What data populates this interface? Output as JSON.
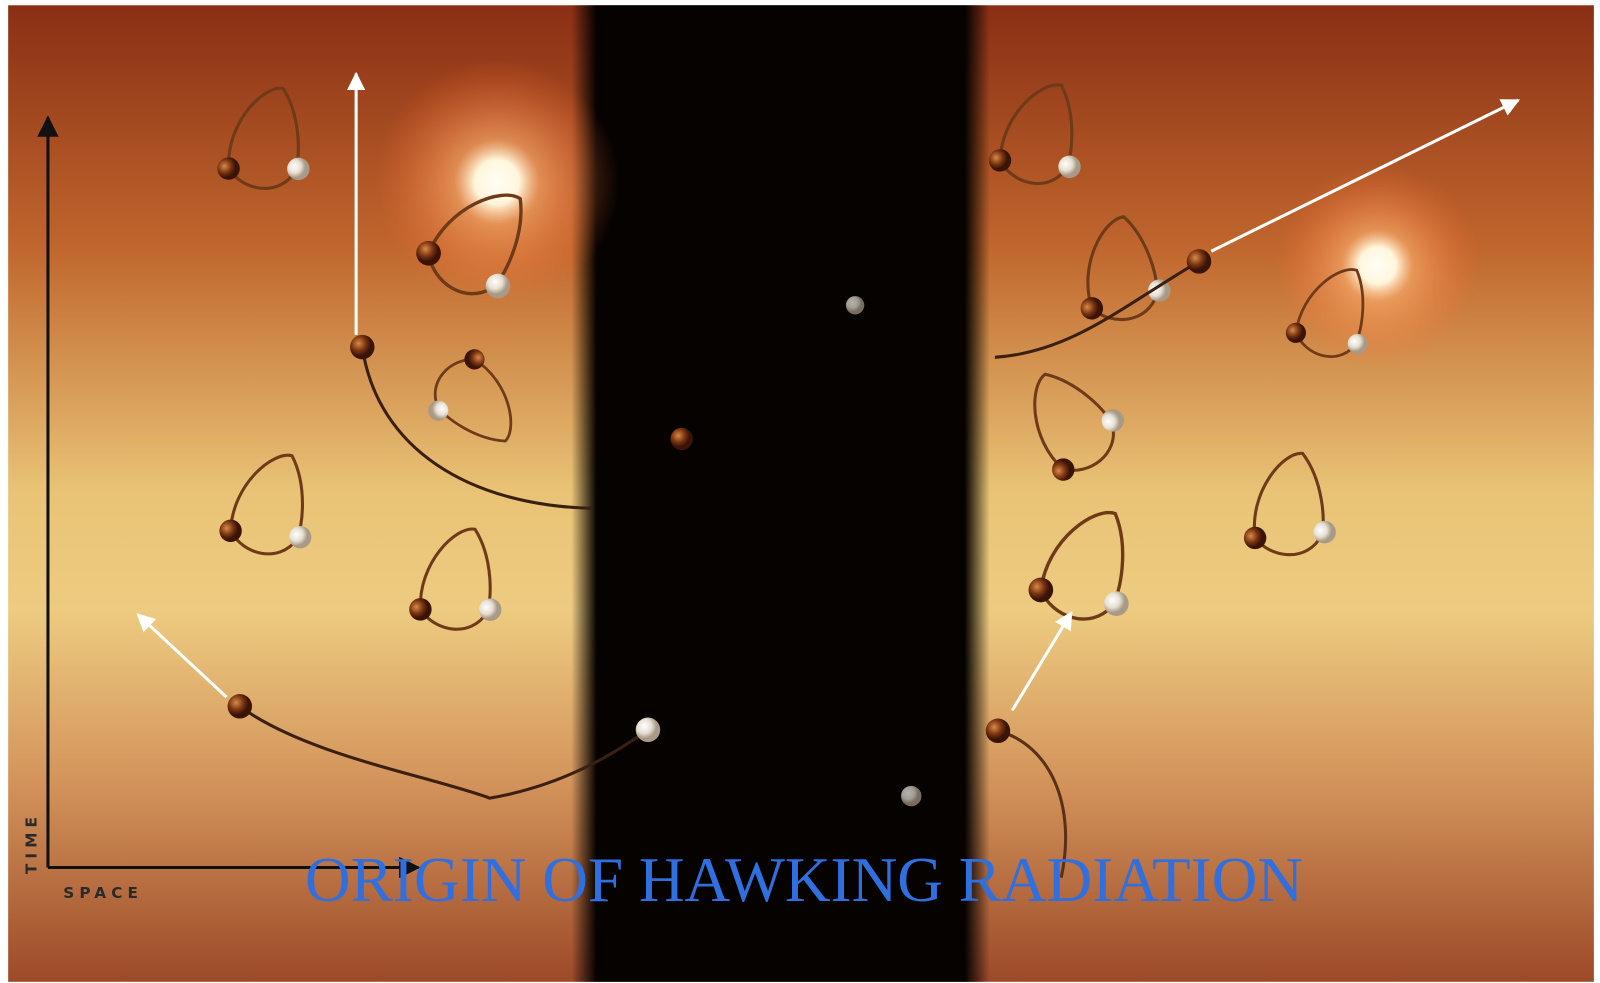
{
  "title": "ORIGIN OF HAWKING RADIATION",
  "axes": {
    "y_label": "TIME",
    "x_label": "SPACE"
  }
}
